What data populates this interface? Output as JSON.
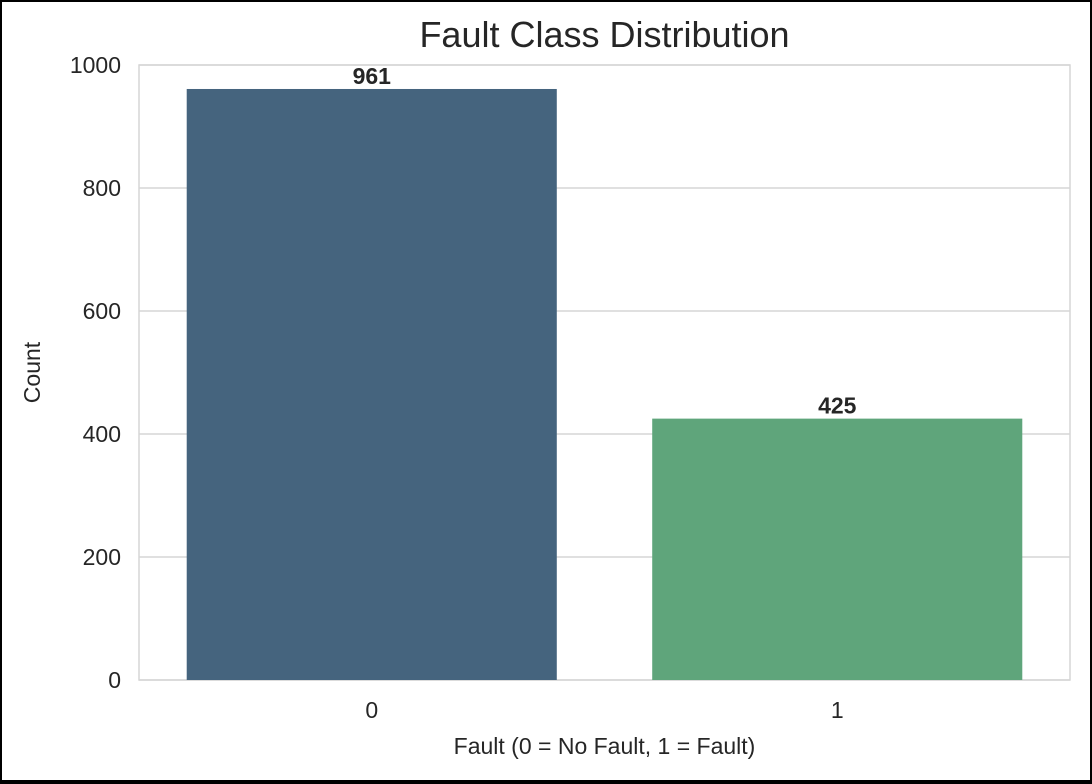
{
  "chart_data": {
    "type": "bar",
    "title": "Fault Class Distribution",
    "xlabel": "Fault (0 = No Fault, 1 = Fault)",
    "ylabel": "Count",
    "categories": [
      "0",
      "1"
    ],
    "values": [
      961,
      425
    ],
    "data_labels": [
      "961",
      "425"
    ],
    "colors": [
      "#45647e",
      "#5fa57b"
    ],
    "ylim": [
      0,
      1000
    ],
    "yticks": [
      0,
      200,
      400,
      600,
      800,
      1000
    ],
    "grid": true
  }
}
